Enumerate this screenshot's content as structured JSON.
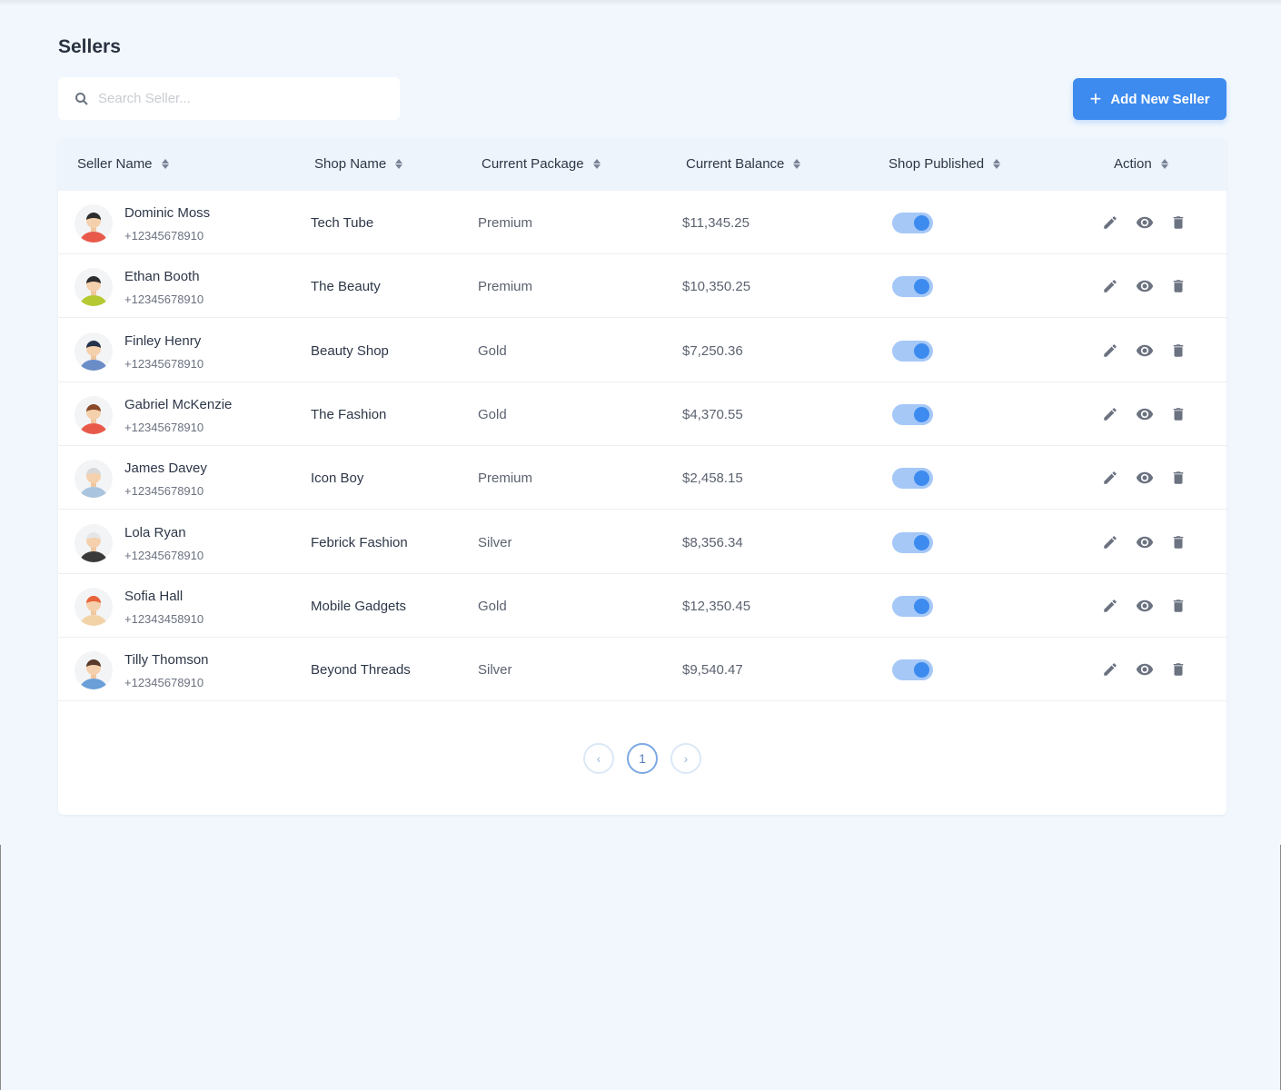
{
  "page": {
    "title": "Sellers"
  },
  "search": {
    "placeholder": "Search Seller...",
    "value": ""
  },
  "toolbar": {
    "add_label": "Add New Seller"
  },
  "table": {
    "columns": [
      "Seller Name",
      "Shop Name",
      "Current Package",
      "Current Balance",
      "Shop Published",
      "Action"
    ],
    "rows": [
      {
        "name": "Dominic Moss",
        "phone": "+12345678910",
        "shop": "Tech Tube",
        "package": "Premium",
        "balance": "$11,345.25",
        "published": true,
        "avatar_color": "#e8594a",
        "hair_color": "#2d2d2d"
      },
      {
        "name": "Ethan Booth",
        "phone": "+12345678910",
        "shop": "The Beauty",
        "package": "Premium",
        "balance": "$10,350.25",
        "published": true,
        "avatar_color": "#b5c932",
        "hair_color": "#2d2d2d"
      },
      {
        "name": "Finley Henry",
        "phone": "+12345678910",
        "shop": "Beauty Shop",
        "package": "Gold",
        "balance": "$7,250.36",
        "published": true,
        "avatar_color": "#6a8cc7",
        "hair_color": "#24324a"
      },
      {
        "name": "Gabriel McKenzie",
        "phone": "+12345678910",
        "shop": "The Fashion",
        "package": "Gold",
        "balance": "$4,370.55",
        "published": true,
        "avatar_color": "#e8594a",
        "hair_color": "#8a4a2a"
      },
      {
        "name": "James Davey",
        "phone": "+12345678910",
        "shop": "Icon Boy",
        "package": "Premium",
        "balance": "$2,458.15",
        "published": true,
        "avatar_color": "#a9c4de",
        "hair_color": "#d8d8d8"
      },
      {
        "name": "Lola Ryan",
        "phone": "+12345678910",
        "shop": "Febrick Fashion",
        "package": "Silver",
        "balance": "$8,356.34",
        "published": true,
        "avatar_color": "#3a3a3a",
        "hair_color": "#e6e6e6"
      },
      {
        "name": "Sofia Hall",
        "phone": "+12343458910",
        "shop": "Mobile Gadgets",
        "package": "Gold",
        "balance": "$12,350.45",
        "published": true,
        "avatar_color": "#f2d3a8",
        "hair_color": "#e8643a"
      },
      {
        "name": "Tilly Thomson",
        "phone": "+12345678910",
        "shop": "Beyond Threads",
        "package": "Silver",
        "balance": "$9,540.47",
        "published": true,
        "avatar_color": "#6a9fd8",
        "hair_color": "#5a3a2a"
      }
    ]
  },
  "pagination": {
    "prev": "‹",
    "current": "1",
    "next": "›"
  },
  "colors": {
    "accent": "#3d8bef",
    "background": "#f1f7fd"
  }
}
